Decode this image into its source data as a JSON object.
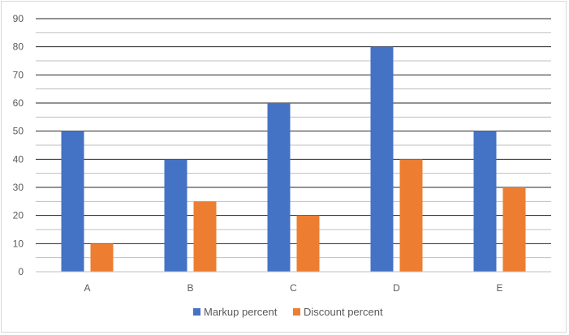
{
  "chart_data": {
    "type": "bar",
    "categories": [
      "A",
      "B",
      "C",
      "D",
      "E"
    ],
    "series": [
      {
        "name": "Markup percent",
        "values": [
          50,
          40,
          60,
          80,
          50
        ],
        "color": "#4472c4"
      },
      {
        "name": "Discount percent",
        "values": [
          10,
          25,
          20,
          40,
          30
        ],
        "color": "#ed7d31"
      }
    ],
    "ylim": [
      0,
      90
    ],
    "y_ticks": [
      0,
      10,
      20,
      30,
      40,
      50,
      60,
      70,
      80,
      90
    ],
    "grid": true,
    "legend_position": "bottom",
    "title": "",
    "xlabel": "",
    "ylabel": ""
  }
}
